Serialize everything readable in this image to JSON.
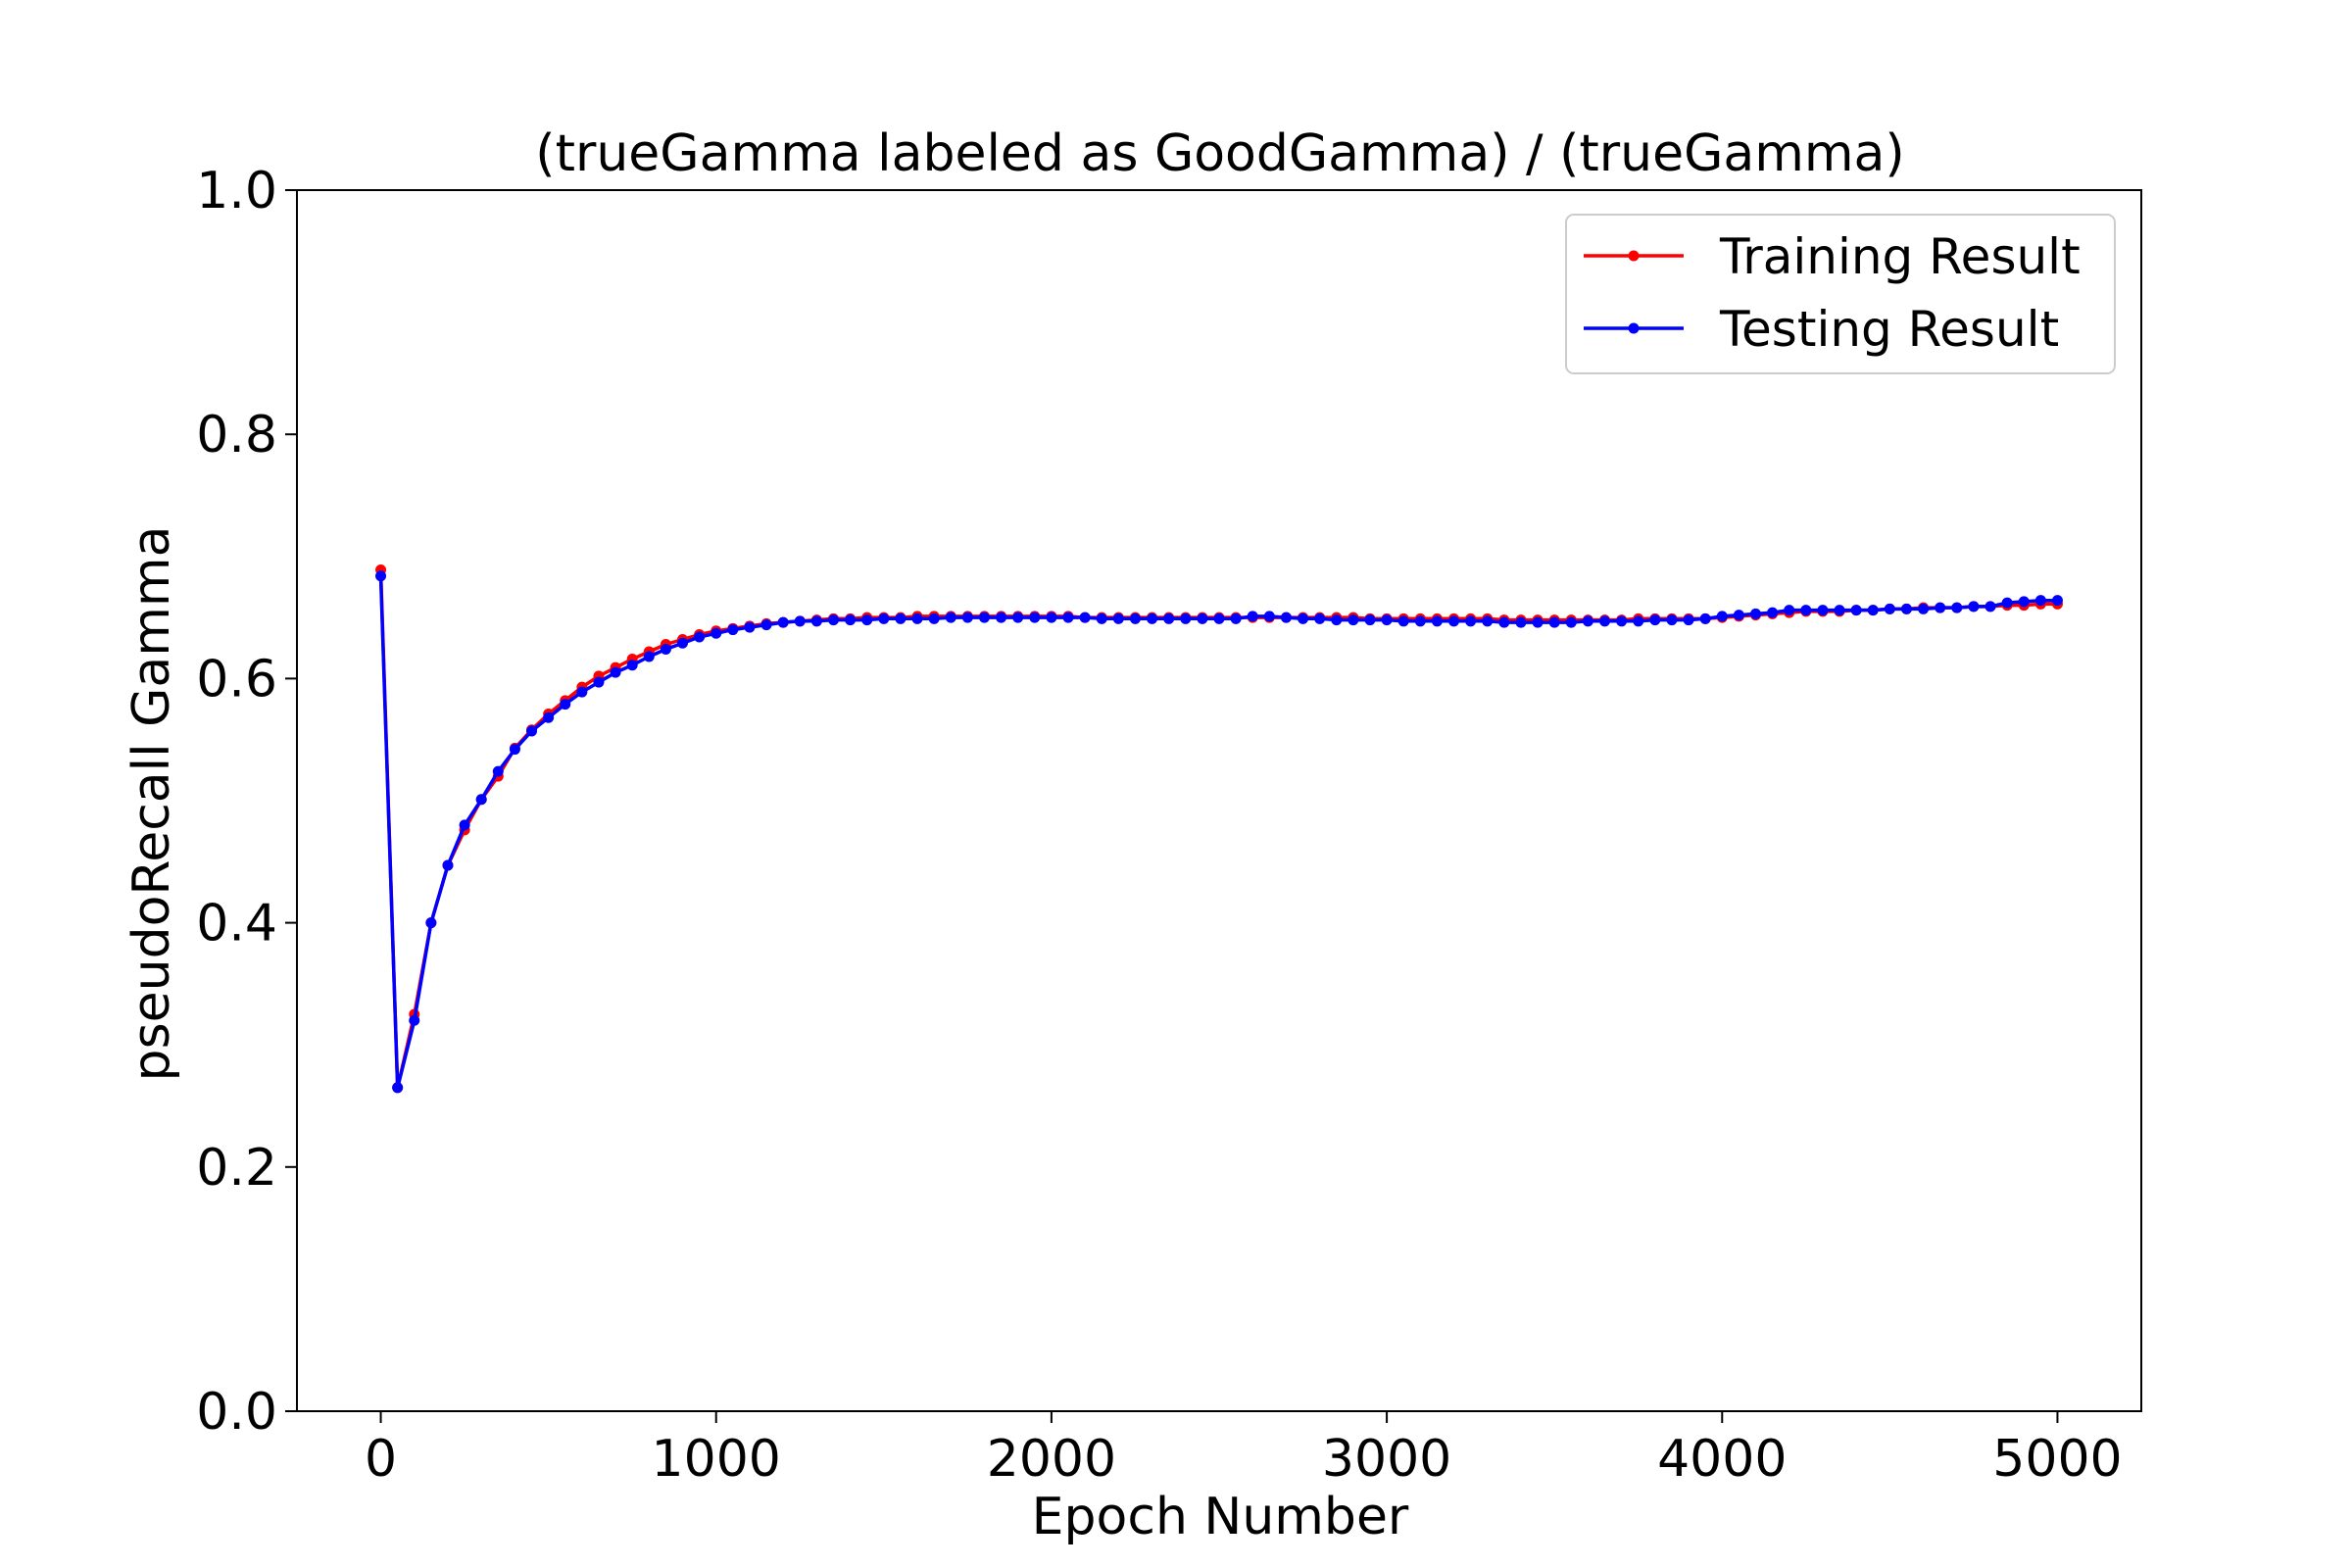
{
  "chart_data": {
    "type": "line",
    "title": "(trueGamma labeled as GoodGamma) / (trueGamma)",
    "xlabel": "Epoch Number",
    "ylabel": "pseudoRecall Gamma",
    "xlim": [
      -250,
      5250
    ],
    "ylim": [
      0.0,
      1.0
    ],
    "xticks": [
      0,
      1000,
      2000,
      3000,
      4000,
      5000
    ],
    "yticks": [
      0.0,
      0.2,
      0.4,
      0.6,
      0.8,
      1.0
    ],
    "xtick_labels": [
      "0",
      "1000",
      "2000",
      "3000",
      "4000",
      "5000"
    ],
    "ytick_labels": [
      "0.0",
      "0.2",
      "0.4",
      "0.6",
      "0.8",
      "1.0"
    ],
    "grid": false,
    "legend_position": "upper right",
    "x": [
      0,
      50,
      100,
      150,
      200,
      250,
      300,
      350,
      400,
      450,
      500,
      550,
      600,
      650,
      700,
      750,
      800,
      850,
      900,
      950,
      1000,
      1050,
      1100,
      1150,
      1200,
      1250,
      1300,
      1350,
      1400,
      1450,
      1500,
      1550,
      1600,
      1650,
      1700,
      1750,
      1800,
      1850,
      1900,
      1950,
      2000,
      2050,
      2100,
      2150,
      2200,
      2250,
      2300,
      2350,
      2400,
      2450,
      2500,
      2550,
      2600,
      2650,
      2700,
      2750,
      2800,
      2850,
      2900,
      2950,
      3000,
      3050,
      3100,
      3150,
      3200,
      3250,
      3300,
      3350,
      3400,
      3450,
      3500,
      3550,
      3600,
      3650,
      3700,
      3750,
      3800,
      3850,
      3900,
      3950,
      4000,
      4050,
      4100,
      4150,
      4200,
      4250,
      4300,
      4350,
      4400,
      4450,
      4500,
      4550,
      4600,
      4650,
      4700,
      4750,
      4800,
      4850,
      4900,
      4950,
      5000
    ],
    "series": [
      {
        "name": "Training Result",
        "color": "#ff0000",
        "values": [
          0.689,
          0.265,
          0.325,
          0.4,
          0.447,
          0.476,
          0.501,
          0.52,
          0.543,
          0.558,
          0.571,
          0.582,
          0.593,
          0.602,
          0.609,
          0.616,
          0.622,
          0.628,
          0.632,
          0.636,
          0.639,
          0.641,
          0.643,
          0.645,
          0.646,
          0.647,
          0.648,
          0.649,
          0.649,
          0.65,
          0.65,
          0.65,
          0.651,
          0.651,
          0.651,
          0.651,
          0.651,
          0.651,
          0.651,
          0.651,
          0.651,
          0.651,
          0.65,
          0.65,
          0.65,
          0.65,
          0.65,
          0.65,
          0.65,
          0.65,
          0.65,
          0.65,
          0.65,
          0.65,
          0.65,
          0.65,
          0.65,
          0.65,
          0.65,
          0.649,
          0.649,
          0.649,
          0.649,
          0.649,
          0.649,
          0.649,
          0.649,
          0.648,
          0.648,
          0.648,
          0.648,
          0.648,
          0.648,
          0.648,
          0.648,
          0.649,
          0.649,
          0.649,
          0.649,
          0.649,
          0.65,
          0.651,
          0.652,
          0.653,
          0.654,
          0.655,
          0.655,
          0.655,
          0.656,
          0.656,
          0.657,
          0.657,
          0.658,
          0.658,
          0.658,
          0.659,
          0.659,
          0.66,
          0.66,
          0.661,
          0.661
        ]
      },
      {
        "name": "Testing Result",
        "color": "#0000ff",
        "values": [
          0.684,
          0.265,
          0.32,
          0.4,
          0.447,
          0.48,
          0.501,
          0.524,
          0.542,
          0.557,
          0.568,
          0.579,
          0.589,
          0.597,
          0.605,
          0.611,
          0.618,
          0.624,
          0.629,
          0.634,
          0.637,
          0.64,
          0.642,
          0.644,
          0.646,
          0.647,
          0.647,
          0.648,
          0.648,
          0.648,
          0.649,
          0.649,
          0.649,
          0.649,
          0.65,
          0.65,
          0.65,
          0.65,
          0.65,
          0.65,
          0.65,
          0.65,
          0.65,
          0.649,
          0.649,
          0.649,
          0.649,
          0.649,
          0.649,
          0.649,
          0.649,
          0.649,
          0.651,
          0.651,
          0.65,
          0.649,
          0.649,
          0.648,
          0.648,
          0.648,
          0.648,
          0.647,
          0.647,
          0.647,
          0.647,
          0.647,
          0.647,
          0.646,
          0.646,
          0.646,
          0.646,
          0.646,
          0.647,
          0.647,
          0.647,
          0.647,
          0.648,
          0.648,
          0.648,
          0.649,
          0.651,
          0.652,
          0.653,
          0.654,
          0.656,
          0.656,
          0.656,
          0.656,
          0.656,
          0.656,
          0.657,
          0.657,
          0.657,
          0.658,
          0.658,
          0.659,
          0.659,
          0.662,
          0.663,
          0.664,
          0.664
        ]
      }
    ]
  }
}
